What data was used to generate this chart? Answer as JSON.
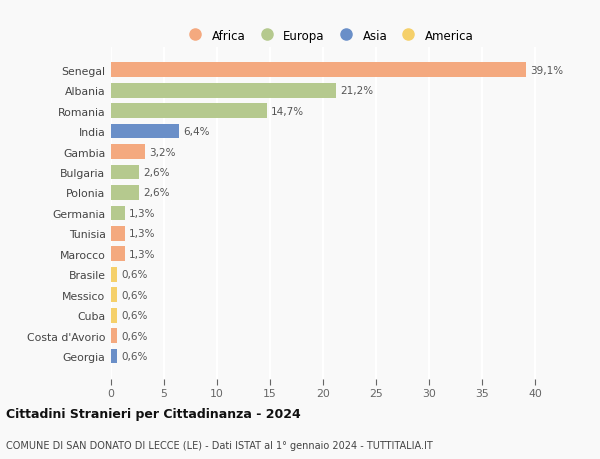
{
  "countries": [
    "Senegal",
    "Albania",
    "Romania",
    "India",
    "Gambia",
    "Bulgaria",
    "Polonia",
    "Germania",
    "Tunisia",
    "Marocco",
    "Brasile",
    "Messico",
    "Cuba",
    "Costa d'Avorio",
    "Georgia"
  ],
  "values": [
    39.1,
    21.2,
    14.7,
    6.4,
    3.2,
    2.6,
    2.6,
    1.3,
    1.3,
    1.3,
    0.6,
    0.6,
    0.6,
    0.6,
    0.6
  ],
  "labels": [
    "39,1%",
    "21,2%",
    "14,7%",
    "6,4%",
    "3,2%",
    "2,6%",
    "2,6%",
    "1,3%",
    "1,3%",
    "1,3%",
    "0,6%",
    "0,6%",
    "0,6%",
    "0,6%",
    "0,6%"
  ],
  "continents": [
    "Africa",
    "Europa",
    "Europa",
    "Asia",
    "Africa",
    "Europa",
    "Europa",
    "Europa",
    "Africa",
    "Africa",
    "America",
    "America",
    "America",
    "Africa",
    "Asia"
  ],
  "colors": {
    "Africa": "#F4A97F",
    "Europa": "#B5C98E",
    "Asia": "#6A8FC8",
    "America": "#F5D06A"
  },
  "legend_order": [
    "Africa",
    "Europa",
    "Asia",
    "America"
  ],
  "legend_colors": [
    "#F4A97F",
    "#B5C98E",
    "#6A8FC8",
    "#F5D06A"
  ],
  "title": "Cittadini Stranieri per Cittadinanza - 2024",
  "subtitle": "COMUNE DI SAN DONATO DI LECCE (LE) - Dati ISTAT al 1° gennaio 2024 - TUTTITALIA.IT",
  "xlim": [
    0,
    41
  ],
  "xticks": [
    0,
    5,
    10,
    15,
    20,
    25,
    30,
    35,
    40
  ],
  "background_color": "#f9f9f9",
  "grid_color": "#ffffff",
  "bar_height": 0.72
}
